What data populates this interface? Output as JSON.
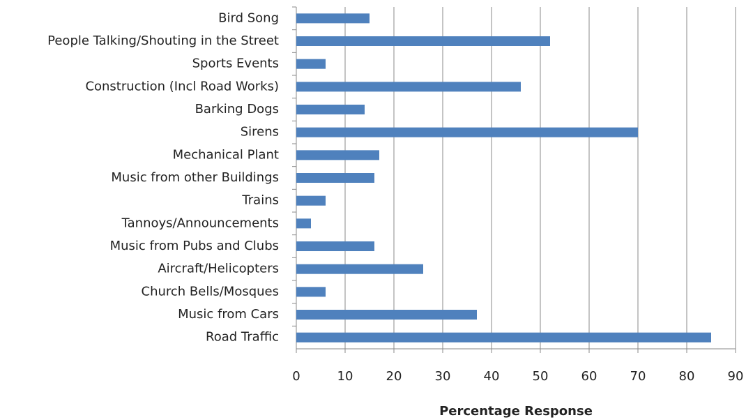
{
  "chart_data": {
    "type": "barh",
    "xlabel": "Percentage Response",
    "categories": [
      "Bird Song",
      "People Talking/Shouting in the Street",
      "Sports Events",
      "Construction (Incl Road Works)",
      "Barking Dogs",
      "Sirens",
      "Mechanical Plant",
      "Music from other Buildings",
      "Trains",
      "Tannoys/Announcements",
      "Music from Pubs and Clubs",
      "Aircraft/Helicopters",
      "Church Bells/Mosques",
      "Music from Cars",
      "Road Traffic"
    ],
    "values": [
      15,
      52,
      6,
      46,
      14,
      70,
      17,
      16,
      6,
      3,
      16,
      26,
      6,
      37,
      85
    ],
    "color": "#4f81bd",
    "xlim": [
      0,
      90
    ],
    "xticks": [
      0,
      10,
      20,
      30,
      40,
      50,
      60,
      70,
      80,
      90
    ],
    "grid": true
  }
}
